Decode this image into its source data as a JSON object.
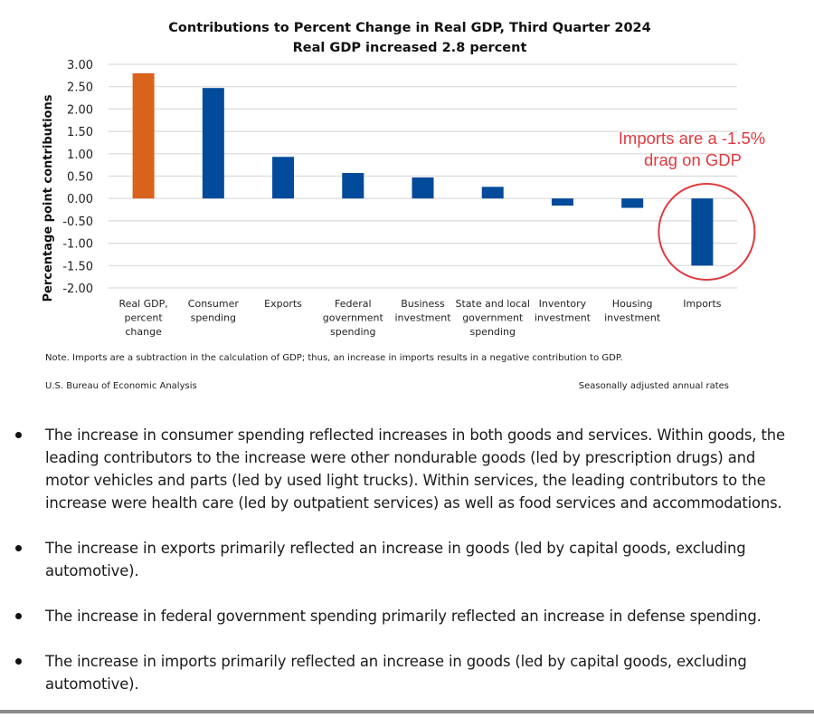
{
  "chart_data": {
    "type": "bar",
    "title": "Contributions to Percent Change in Real GDP, Third Quarter 2024",
    "subtitle": "Real GDP increased 2.8 percent",
    "xlabel": "",
    "ylabel": "Percentage point contributions",
    "ylim": [
      -2.0,
      3.0
    ],
    "yticks": [
      "3.00",
      "2.50",
      "2.00",
      "1.50",
      "1.00",
      "0.50",
      "0.00",
      "-0.50",
      "-1.00",
      "-1.50",
      "-2.00"
    ],
    "ytick_values": [
      3.0,
      2.5,
      2.0,
      1.5,
      1.0,
      0.5,
      0.0,
      -0.5,
      -1.0,
      -1.5,
      -2.0
    ],
    "grid": true,
    "categories": [
      [
        "Real GDP,",
        "percent",
        "change"
      ],
      [
        "Consumer",
        "spending"
      ],
      [
        "Exports"
      ],
      [
        "Federal",
        "government",
        "spending"
      ],
      [
        "Business",
        "investment"
      ],
      [
        "State and local",
        "government",
        "spending"
      ],
      [
        "Inventory",
        "investment"
      ],
      [
        "Housing",
        "investment"
      ],
      [
        "Imports"
      ]
    ],
    "values": [
      2.8,
      2.47,
      0.93,
      0.57,
      0.47,
      0.26,
      -0.16,
      -0.21,
      -1.5
    ],
    "bar_colors": [
      "#d9621d",
      "#024a9a",
      "#024a9a",
      "#024a9a",
      "#024a9a",
      "#024a9a",
      "#024a9a",
      "#024a9a",
      "#024a9a"
    ],
    "annotation": {
      "lines": [
        "Imports are a -1.5%",
        "drag on GDP"
      ],
      "color": "#e0393e",
      "highlighted_category_index": 8
    },
    "note": "Note. Imports are a subtraction in the calculation of GDP; thus, an increase in imports results in a negative contribution to GDP.",
    "source": "U.S. Bureau of Economic Analysis",
    "rates_note": "Seasonally adjusted annual rates"
  },
  "bullets": [
    "The increase in consumer spending reflected increases in both goods and services. Within goods, the leading contributors to the increase were other nondurable goods (led by prescription drugs) and motor vehicles and parts (led by used light trucks). Within services, the leading contributors to the increase were health care (led by outpatient services) as well as food services and accommodations.",
    "The increase in exports primarily reflected an increase in goods (led by capital goods, excluding automotive).",
    "The increase in federal government spending primarily reflected an increase in defense spending.",
    "The increase in imports primarily reflected an increase in goods (led by capital goods, excluding automotive)."
  ]
}
